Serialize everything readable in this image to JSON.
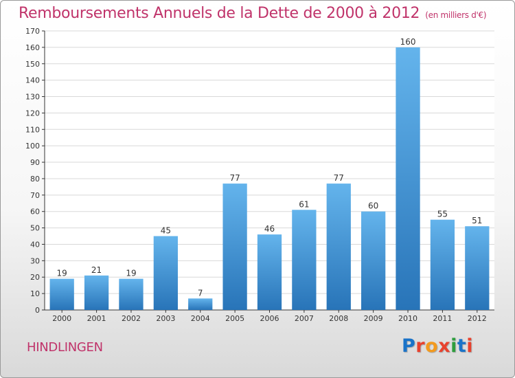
{
  "header": {
    "title": "Remboursements Annuels de la Dette de 2000 à 2012",
    "unit": "(en milliers d'€)"
  },
  "footer": {
    "commune": "HINDLINGEN",
    "logo_text": "Proxiti",
    "logo_colors": [
      "#1a73c8",
      "#e8422e",
      "#f39a1e",
      "#e8422e",
      "#2e9e3e",
      "#1a73c8",
      "#e8422e"
    ]
  },
  "colors": {
    "title": "#c0336a",
    "bar_top": "#64b4ec",
    "bar_bottom": "#2874b8",
    "grid": "#d8d8d8",
    "axis": "#333333"
  },
  "chart_data": {
    "type": "bar",
    "categories": [
      "2000",
      "2001",
      "2002",
      "2003",
      "2004",
      "2005",
      "2006",
      "2007",
      "2008",
      "2009",
      "2010",
      "2011",
      "2012"
    ],
    "values": [
      19,
      21,
      19,
      45,
      7,
      77,
      46,
      61,
      77,
      60,
      160,
      55,
      51
    ],
    "ylim": [
      0,
      170
    ],
    "ytick_step": 10,
    "grid": true,
    "data_labels": true
  }
}
